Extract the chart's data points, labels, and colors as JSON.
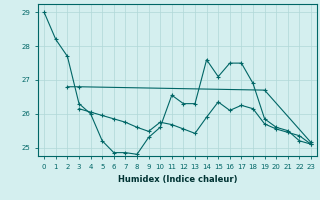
{
  "xlabel": "Humidex (Indice chaleur)",
  "bg_color": "#d4efef",
  "grid_color": "#b0d8d8",
  "line_color": "#006666",
  "xlim": [
    -0.5,
    23.5
  ],
  "ylim": [
    24.75,
    29.25
  ],
  "yticks": [
    25,
    26,
    27,
    28,
    29
  ],
  "xticks": [
    0,
    1,
    2,
    3,
    4,
    5,
    6,
    7,
    8,
    9,
    10,
    11,
    12,
    13,
    14,
    15,
    16,
    17,
    18,
    19,
    20,
    21,
    22,
    23
  ],
  "series1_x": [
    0,
    1,
    2,
    3,
    4,
    5,
    6,
    7,
    8,
    9,
    10,
    11,
    12,
    13,
    14,
    15,
    16,
    17,
    18,
    19,
    20,
    21,
    22,
    23
  ],
  "series1_y": [
    29.0,
    28.2,
    27.7,
    26.3,
    26.0,
    25.2,
    24.85,
    24.85,
    24.8,
    25.3,
    25.6,
    26.55,
    26.3,
    26.3,
    27.6,
    27.1,
    27.5,
    27.5,
    26.9,
    25.85,
    25.6,
    25.5,
    25.2,
    25.1
  ],
  "series2_x": [
    2,
    3,
    19,
    23
  ],
  "series2_y": [
    26.8,
    26.8,
    26.7,
    25.15
  ],
  "series3_x": [
    3,
    4,
    5,
    6,
    7,
    8,
    9,
    10,
    11,
    12,
    13,
    14,
    15,
    16,
    17,
    18,
    19,
    20,
    21,
    22,
    23
  ],
  "series3_y": [
    26.15,
    26.05,
    25.95,
    25.85,
    25.75,
    25.6,
    25.48,
    25.75,
    25.68,
    25.55,
    25.42,
    25.9,
    26.35,
    26.1,
    26.25,
    26.15,
    25.7,
    25.55,
    25.45,
    25.35,
    25.1
  ]
}
